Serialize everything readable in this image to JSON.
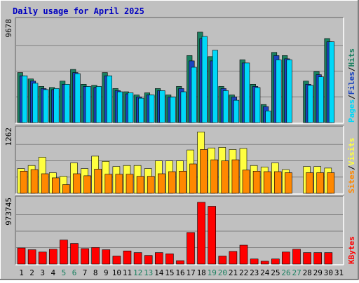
{
  "chart_data": {
    "type": "bar",
    "title": "Daily usage for April 2025",
    "categories": [
      "1",
      "2",
      "3",
      "4",
      "5",
      "6",
      "7",
      "8",
      "9",
      "10",
      "11",
      "12",
      "13",
      "14",
      "15",
      "16",
      "17",
      "18",
      "19",
      "20",
      "21",
      "22",
      "23",
      "24",
      "25",
      "26",
      "27",
      "28",
      "29",
      "30",
      "31"
    ],
    "weekend_days": [
      5,
      6,
      12,
      13,
      19,
      20,
      26,
      27
    ],
    "panels": [
      {
        "id": "hits-files-pages",
        "ymax_label": "9678",
        "ylim": [
          0,
          9678
        ],
        "legend": [
          "Pages",
          "/",
          "Files",
          "/",
          "Hits"
        ],
        "series": [
          {
            "name": "Hits",
            "color": "#1a8060",
            "values": [
              4700,
              4100,
              3400,
              3300,
              3900,
              5000,
              3600,
              3500,
              4700,
              3200,
              2900,
              2600,
              2800,
              3200,
              2600,
              3400,
              6300,
              8500,
              6200,
              3400,
              2600,
              5900,
              3600,
              1700,
              6600,
              6300,
              0,
              3900,
              4800,
              7900,
              0
            ]
          },
          {
            "name": "Files",
            "color": "#1a44c0",
            "values": [
              4400,
              3900,
              3200,
              3100,
              3600,
              4700,
              3400,
              3300,
              4400,
              3000,
              2700,
              2400,
              2600,
              3000,
              2400,
              3200,
              5800,
              7900,
              5800,
              3200,
              2400,
              5600,
              3400,
              1500,
              6300,
              6000,
              0,
              3600,
              4500,
              7600,
              0
            ]
          },
          {
            "name": "Pages",
            "color": "#00d8f8",
            "values": [
              4400,
              3700,
              3100,
              3200,
              3600,
              4600,
              3400,
              3400,
              4400,
              2900,
              2800,
              2300,
              2600,
              3000,
              2400,
              2900,
              5200,
              8100,
              6800,
              3000,
              2100,
              5600,
              3300,
              1100,
              5900,
              5900,
              0,
              3500,
              4300,
              7600,
              0
            ]
          }
        ]
      },
      {
        "id": "visits-sites",
        "ymax_label": "1262",
        "ylim": [
          0,
          1262
        ],
        "legend": [
          "Sites",
          "/",
          "Visits"
        ],
        "series": [
          {
            "name": "Visits",
            "color": "#ffff40",
            "values": [
              480,
              540,
              700,
              400,
              330,
              590,
              480,
              720,
              620,
              520,
              540,
              540,
              480,
              630,
              630,
              630,
              840,
              1190,
              880,
              890,
              850,
              870,
              540,
              510,
              590,
              460,
              0,
              520,
              520,
              490,
              0
            ]
          },
          {
            "name": "Sites",
            "color": "#ff8800",
            "values": [
              430,
              460,
              380,
              300,
              170,
              380,
              340,
              470,
              370,
              370,
              370,
              330,
              330,
              380,
              420,
              430,
              570,
              850,
              650,
              630,
              650,
              450,
              430,
              420,
              420,
              400,
              0,
              400,
              400,
              400,
              0
            ]
          }
        ]
      },
      {
        "id": "kbytes",
        "ymax_label": "973745",
        "ylim": [
          0,
          973745
        ],
        "legend": [
          "KBytes"
        ],
        "series": [
          {
            "name": "KBytes",
            "color": "#ff0000",
            "values": [
              238000,
              212000,
              178000,
              220000,
              356000,
              305000,
              229000,
              246000,
              212000,
              119000,
              195000,
              170000,
              127000,
              170000,
              152000,
              51000,
              467000,
              915000,
              855000,
              119000,
              187000,
              280000,
              76000,
              42000,
              76000,
              178000,
              220000,
              170000,
              170000,
              170000,
              0
            ]
          }
        ]
      }
    ]
  }
}
